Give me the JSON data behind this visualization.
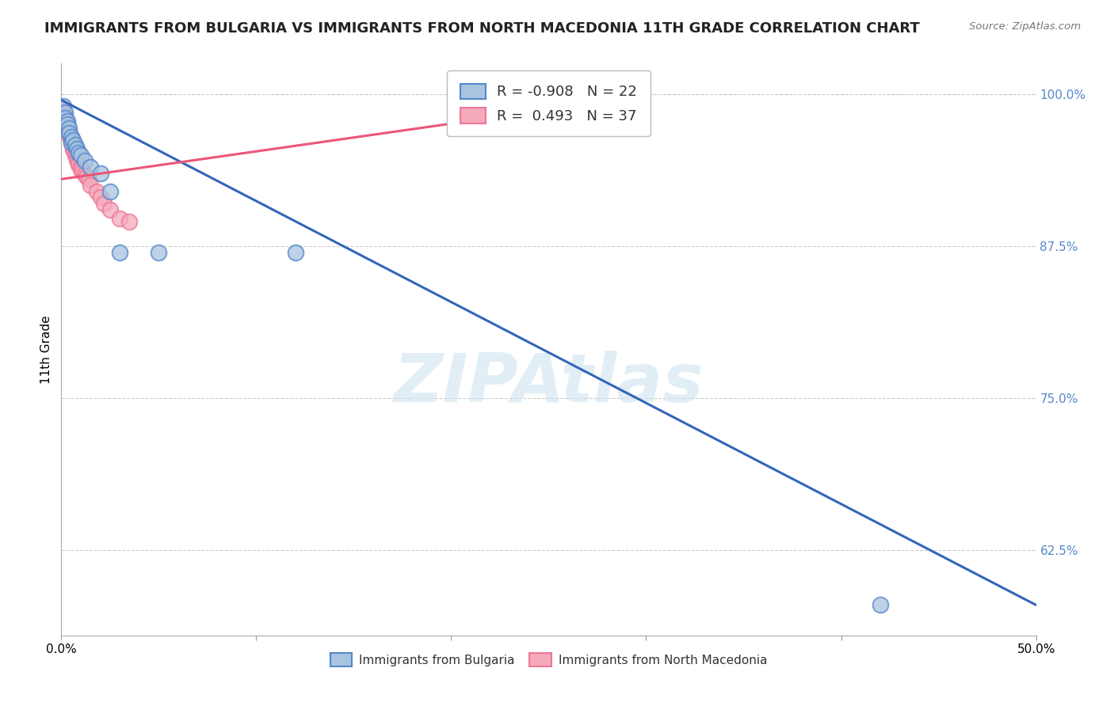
{
  "title": "IMMIGRANTS FROM BULGARIA VS IMMIGRANTS FROM NORTH MACEDONIA 11TH GRADE CORRELATION CHART",
  "source": "Source: ZipAtlas.com",
  "ylabel": "11th Grade",
  "watermark": "ZIPAtlas",
  "xlim": [
    0.0,
    0.5
  ],
  "ylim": [
    0.555,
    1.025
  ],
  "yticks": [
    0.625,
    0.75,
    0.875,
    1.0
  ],
  "ytick_labels": [
    "62.5%",
    "75.0%",
    "87.5%",
    "100.0%"
  ],
  "blue_R": -0.908,
  "blue_N": 22,
  "pink_R": 0.493,
  "pink_N": 37,
  "blue_color": "#A8C4E0",
  "pink_color": "#F4AABB",
  "blue_edge_color": "#5588CC",
  "pink_edge_color": "#EE7799",
  "blue_line_color": "#3366BB",
  "pink_line_color": "#EE5577",
  "blue_scatter_x": [
    0.001,
    0.002,
    0.002,
    0.003,
    0.003,
    0.004,
    0.004,
    0.005,
    0.005,
    0.006,
    0.007,
    0.008,
    0.009,
    0.01,
    0.012,
    0.015,
    0.02,
    0.025,
    0.03,
    0.05,
    0.12,
    0.42
  ],
  "blue_scatter_y": [
    0.99,
    0.985,
    0.98,
    0.978,
    0.975,
    0.972,
    0.968,
    0.965,
    0.96,
    0.962,
    0.958,
    0.955,
    0.952,
    0.95,
    0.945,
    0.94,
    0.935,
    0.92,
    0.87,
    0.87,
    0.87,
    0.58
  ],
  "pink_scatter_x": [
    0.001,
    0.001,
    0.002,
    0.002,
    0.002,
    0.003,
    0.003,
    0.003,
    0.004,
    0.004,
    0.004,
    0.005,
    0.005,
    0.005,
    0.006,
    0.006,
    0.006,
    0.007,
    0.007,
    0.008,
    0.008,
    0.009,
    0.009,
    0.01,
    0.01,
    0.011,
    0.012,
    0.013,
    0.014,
    0.015,
    0.018,
    0.02,
    0.022,
    0.025,
    0.03,
    0.035,
    0.28
  ],
  "pink_scatter_y": [
    0.988,
    0.985,
    0.982,
    0.98,
    0.978,
    0.976,
    0.974,
    0.972,
    0.97,
    0.968,
    0.966,
    0.964,
    0.962,
    0.96,
    0.958,
    0.956,
    0.954,
    0.952,
    0.95,
    0.948,
    0.946,
    0.944,
    0.942,
    0.94,
    0.938,
    0.936,
    0.934,
    0.932,
    0.93,
    0.925,
    0.92,
    0.915,
    0.91,
    0.905,
    0.898,
    0.895,
    0.99
  ],
  "blue_trendline_x": [
    0.0,
    0.5
  ],
  "blue_trendline_y": [
    0.995,
    0.58
  ],
  "pink_trendline_x": [
    0.0,
    0.285
  ],
  "pink_trendline_y": [
    0.93,
    0.995
  ],
  "background_color": "#FFFFFF",
  "grid_color": "#CCCCCC",
  "title_fontsize": 13,
  "axis_label_fontsize": 11,
  "tick_fontsize": 11,
  "legend_fontsize": 13
}
